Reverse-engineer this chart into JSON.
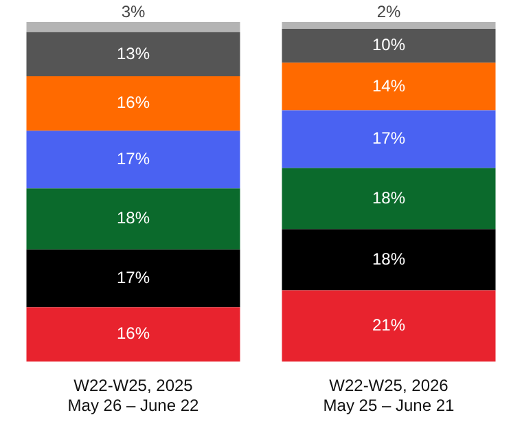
{
  "chart_data": {
    "type": "bar",
    "stacked": true,
    "grid": false,
    "legend": false,
    "tick_labels": "x",
    "categories": [
      "W22-W25, 2025\nMay 26 – June 22",
      "W22-W25, 2026\nMay 25 – June 21"
    ],
    "series": [
      {
        "color": "#e8232e",
        "values": [
          16,
          21
        ],
        "value_labels": [
          "16%",
          "21%"
        ]
      },
      {
        "color": "#000000",
        "values": [
          17,
          18
        ],
        "value_labels": [
          "17%",
          "18%"
        ]
      },
      {
        "color": "#0b6a2c",
        "values": [
          18,
          18
        ],
        "value_labels": [
          "18%",
          "18%"
        ]
      },
      {
        "color": "#4a62f2",
        "values": [
          17,
          17
        ],
        "value_labels": [
          "17%",
          "17%"
        ]
      },
      {
        "color": "#ff6a00",
        "values": [
          16,
          14
        ],
        "value_labels": [
          "16%",
          "14%"
        ]
      },
      {
        "color": "#555555",
        "values": [
          13,
          10
        ],
        "value_labels": [
          "13%",
          "10%"
        ]
      },
      {
        "color": "#b4b4b4",
        "values": [
          3,
          2
        ],
        "value_labels": [
          "3%",
          "2%"
        ]
      }
    ]
  }
}
